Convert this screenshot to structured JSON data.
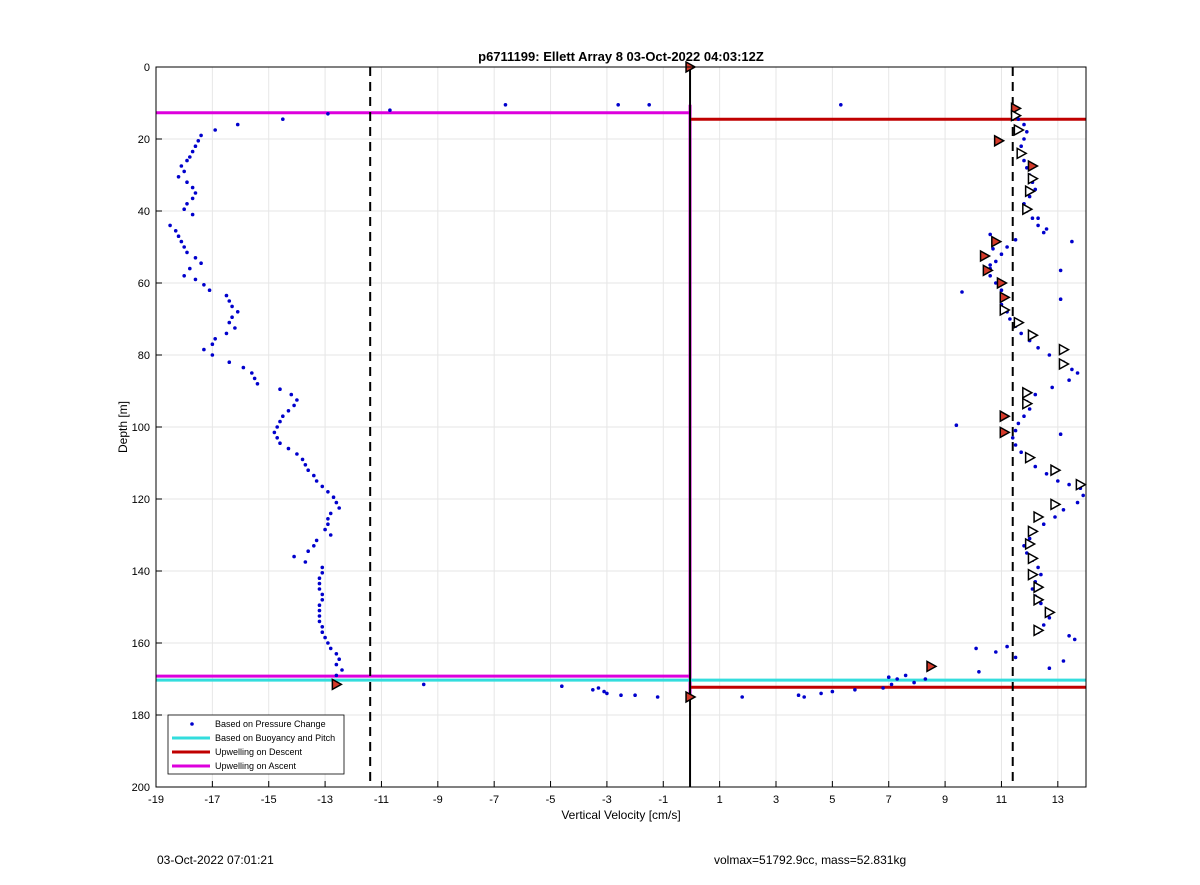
{
  "chart_data": {
    "type": "scatter",
    "title": "p6711199: Ellett Array 8 03-Oct-2022 04:03:12Z",
    "xlabel": "Vertical Velocity [cm/s]",
    "ylabel": "Depth [m]",
    "xlim": [
      -19,
      14
    ],
    "ylim": [
      0,
      200
    ],
    "y_reversed": true,
    "grid": true,
    "x_ticks": [
      "-19",
      "-17",
      "-15",
      "-13",
      "-11",
      "-9",
      "-7",
      "-5",
      "-3",
      "-1",
      "1",
      "3",
      "5",
      "7",
      "9",
      "11",
      "13"
    ],
    "y_ticks": [
      "0",
      "20",
      "40",
      "60",
      "80",
      "100",
      "120",
      "140",
      "160",
      "180",
      "200"
    ],
    "legend_position": "bottom-left",
    "legend": [
      {
        "label": "Based on Pressure Change",
        "color": "#0000cc",
        "style": "dot"
      },
      {
        "label": "Based on Buoyancy and Pitch",
        "color": "#33dddd",
        "style": "line"
      },
      {
        "label": "Upwelling on Descent",
        "color": "#c00000",
        "style": "line"
      },
      {
        "label": "Upwelling on Ascent",
        "color": "#dd00dd",
        "style": "line"
      }
    ],
    "series": [
      {
        "name": "Based on Pressure Change",
        "color": "#0000cc",
        "points": [
          [
            -12.9,
            13
          ],
          [
            -14.5,
            14.5
          ],
          [
            -16.1,
            16
          ],
          [
            -16.9,
            17.5
          ],
          [
            -17.4,
            19
          ],
          [
            -17.5,
            20.5
          ],
          [
            -17.6,
            22
          ],
          [
            -17.7,
            23.5
          ],
          [
            -17.8,
            25
          ],
          [
            -17.9,
            26
          ],
          [
            -18.1,
            27.5
          ],
          [
            -18.0,
            29
          ],
          [
            -18.2,
            30.5
          ],
          [
            -17.9,
            32
          ],
          [
            -17.7,
            33.5
          ],
          [
            -17.6,
            35
          ],
          [
            -17.7,
            36.5
          ],
          [
            -17.9,
            38
          ],
          [
            -18.0,
            39.5
          ],
          [
            -17.7,
            41
          ],
          [
            -18.5,
            44
          ],
          [
            -18.3,
            45.5
          ],
          [
            -18.2,
            47
          ],
          [
            -18.1,
            48.5
          ],
          [
            -18.0,
            50
          ],
          [
            -17.9,
            51.5
          ],
          [
            -17.6,
            53
          ],
          [
            -17.4,
            54.5
          ],
          [
            -17.8,
            56
          ],
          [
            -18.0,
            58
          ],
          [
            -17.6,
            59
          ],
          [
            -17.3,
            60.5
          ],
          [
            -17.1,
            62
          ],
          [
            -16.5,
            63.5
          ],
          [
            -16.4,
            65
          ],
          [
            -16.3,
            66.5
          ],
          [
            -16.1,
            68
          ],
          [
            -16.3,
            69.5
          ],
          [
            -16.4,
            71
          ],
          [
            -16.2,
            72.5
          ],
          [
            -16.5,
            74
          ],
          [
            -16.9,
            75.5
          ],
          [
            -17.0,
            77
          ],
          [
            -17.3,
            78.5
          ],
          [
            -17.0,
            80
          ],
          [
            -16.4,
            82
          ],
          [
            -15.9,
            83.5
          ],
          [
            -15.6,
            85
          ],
          [
            -15.5,
            86.5
          ],
          [
            -15.4,
            88
          ],
          [
            -14.6,
            89.5
          ],
          [
            -14.2,
            91
          ],
          [
            -14.0,
            92.5
          ],
          [
            -14.1,
            94
          ],
          [
            -14.3,
            95.5
          ],
          [
            -14.5,
            97
          ],
          [
            -14.6,
            98.5
          ],
          [
            -14.7,
            100
          ],
          [
            -14.8,
            101.5
          ],
          [
            -14.7,
            103
          ],
          [
            -14.6,
            104.5
          ],
          [
            -14.3,
            106
          ],
          [
            -14.0,
            107.5
          ],
          [
            -13.8,
            109
          ],
          [
            -13.7,
            110.5
          ],
          [
            -13.6,
            112
          ],
          [
            -13.4,
            113.5
          ],
          [
            -13.3,
            115
          ],
          [
            -13.1,
            116.5
          ],
          [
            -12.9,
            118
          ],
          [
            -12.7,
            119.5
          ],
          [
            -12.6,
            121
          ],
          [
            -12.5,
            122.5
          ],
          [
            -12.8,
            124
          ],
          [
            -12.9,
            125.5
          ],
          [
            -12.9,
            127
          ],
          [
            -13.0,
            128.5
          ],
          [
            -12.8,
            130
          ],
          [
            -13.3,
            131.5
          ],
          [
            -13.4,
            133
          ],
          [
            -13.6,
            134.5
          ],
          [
            -14.1,
            136
          ],
          [
            -13.7,
            137.5
          ],
          [
            -13.1,
            139
          ],
          [
            -13.1,
            140.5
          ],
          [
            -13.2,
            142
          ],
          [
            -13.2,
            143.5
          ],
          [
            -13.2,
            145
          ],
          [
            -13.1,
            146.5
          ],
          [
            -13.1,
            148
          ],
          [
            -13.2,
            149.5
          ],
          [
            -13.2,
            151
          ],
          [
            -13.2,
            152.5
          ],
          [
            -13.2,
            154
          ],
          [
            -13.1,
            155.5
          ],
          [
            -13.1,
            157
          ],
          [
            -13.0,
            158.5
          ],
          [
            -12.9,
            160
          ],
          [
            -12.8,
            161.5
          ],
          [
            -12.6,
            163
          ],
          [
            -12.5,
            164.5
          ],
          [
            -12.6,
            166
          ],
          [
            -12.4,
            167.5
          ],
          [
            -12.6,
            169
          ],
          [
            -10.7,
            12
          ],
          [
            -9.5,
            171.5
          ],
          [
            -6.6,
            10.5
          ],
          [
            -2.6,
            10.5
          ],
          [
            -1.5,
            10.5
          ],
          [
            5.3,
            10.5
          ],
          [
            -4.6,
            172
          ],
          [
            -3.5,
            173
          ],
          [
            -3.3,
            172.5
          ],
          [
            -3.1,
            173.5
          ],
          [
            -3.0,
            174
          ],
          [
            -2.5,
            174.5
          ],
          [
            -2.0,
            174.5
          ],
          [
            -1.2,
            175
          ],
          [
            1.8,
            175
          ],
          [
            3.8,
            174.5
          ],
          [
            4.0,
            175
          ],
          [
            4.6,
            174
          ],
          [
            5.0,
            173.5
          ],
          [
            5.8,
            173
          ],
          [
            6.8,
            172.5
          ],
          [
            7.0,
            169.5
          ],
          [
            7.1,
            171.5
          ],
          [
            7.3,
            170
          ],
          [
            7.6,
            169
          ],
          [
            7.9,
            171
          ],
          [
            8.3,
            170
          ],
          [
            10.1,
            161.5
          ],
          [
            10.2,
            168
          ],
          [
            10.8,
            162.5
          ],
          [
            11.2,
            161
          ],
          [
            11.5,
            164
          ],
          [
            12.7,
            167
          ],
          [
            13.2,
            165
          ],
          [
            11.4,
            12
          ],
          [
            11.6,
            14.5
          ],
          [
            11.8,
            16
          ],
          [
            11.9,
            18
          ],
          [
            11.8,
            20
          ],
          [
            11.7,
            22
          ],
          [
            11.6,
            24
          ],
          [
            11.8,
            26
          ],
          [
            11.9,
            28
          ],
          [
            12.0,
            30
          ],
          [
            12.1,
            32
          ],
          [
            12.2,
            34
          ],
          [
            12.0,
            36
          ],
          [
            11.8,
            38
          ],
          [
            11.9,
            40
          ],
          [
            12.1,
            42
          ],
          [
            12.3,
            44
          ],
          [
            12.5,
            46
          ],
          [
            11.5,
            48
          ],
          [
            11.2,
            50
          ],
          [
            11.0,
            52
          ],
          [
            10.8,
            54
          ],
          [
            10.6,
            56
          ],
          [
            10.6,
            58
          ],
          [
            10.8,
            60
          ],
          [
            11.0,
            62
          ],
          [
            11.1,
            64
          ],
          [
            11.0,
            66
          ],
          [
            11.2,
            68
          ],
          [
            11.3,
            70
          ],
          [
            11.5,
            72
          ],
          [
            11.7,
            74
          ],
          [
            12.0,
            76
          ],
          [
            12.3,
            78
          ],
          [
            12.7,
            80
          ],
          [
            13.2,
            82
          ],
          [
            13.5,
            84
          ],
          [
            13.7,
            85
          ],
          [
            13.4,
            87
          ],
          [
            12.8,
            89
          ],
          [
            12.2,
            91
          ],
          [
            11.9,
            93
          ],
          [
            12.0,
            95
          ],
          [
            11.8,
            97
          ],
          [
            11.6,
            99
          ],
          [
            11.5,
            101
          ],
          [
            11.4,
            103
          ],
          [
            11.5,
            105
          ],
          [
            11.7,
            107
          ],
          [
            11.9,
            109
          ],
          [
            12.2,
            111
          ],
          [
            12.6,
            113
          ],
          [
            13.0,
            115
          ],
          [
            13.4,
            116
          ],
          [
            13.8,
            117
          ],
          [
            13.9,
            119
          ],
          [
            13.7,
            121
          ],
          [
            13.2,
            123
          ],
          [
            12.9,
            125
          ],
          [
            12.5,
            127
          ],
          [
            12.2,
            129
          ],
          [
            12.0,
            131
          ],
          [
            11.8,
            133
          ],
          [
            11.9,
            135
          ],
          [
            12.1,
            137
          ],
          [
            12.3,
            139
          ],
          [
            12.4,
            141
          ],
          [
            12.2,
            143
          ],
          [
            12.1,
            145
          ],
          [
            12.2,
            147
          ],
          [
            12.4,
            149
          ],
          [
            12.6,
            151
          ],
          [
            12.7,
            153
          ],
          [
            12.5,
            155
          ],
          [
            12.3,
            157
          ],
          [
            13.4,
            158
          ],
          [
            13.6,
            159
          ],
          [
            10.6,
            46.5
          ],
          [
            10.7,
            50.5
          ],
          [
            10.6,
            55
          ],
          [
            9.6,
            62.5
          ],
          [
            9.4,
            99.5
          ],
          [
            13.5,
            48.5
          ],
          [
            13.1,
            56.5
          ],
          [
            13.1,
            64.5
          ],
          [
            13.1,
            102
          ],
          [
            12.6,
            45
          ],
          [
            12.3,
            42
          ]
        ]
      },
      {
        "name": "Buoyancy markers",
        "color": "#000000",
        "points": [
          [
            -0.05,
            0
          ],
          [
            11.5,
            11.5
          ],
          [
            11.5,
            13.5
          ],
          [
            11.6,
            17.5
          ],
          [
            10.9,
            20.5
          ],
          [
            11.7,
            24
          ],
          [
            12.1,
            27.5
          ],
          [
            12.1,
            31
          ],
          [
            12.0,
            34.5
          ],
          [
            11.9,
            39.5
          ],
          [
            10.8,
            48.5
          ],
          [
            10.4,
            52.5
          ],
          [
            10.5,
            56.5
          ],
          [
            11.0,
            60
          ],
          [
            11.1,
            64
          ],
          [
            11.1,
            67.5
          ],
          [
            11.6,
            71
          ],
          [
            12.1,
            74.5
          ],
          [
            13.2,
            78.5
          ],
          [
            13.2,
            82.5
          ],
          [
            11.9,
            90.5
          ],
          [
            11.9,
            93.5
          ],
          [
            11.1,
            97
          ],
          [
            11.1,
            101.5
          ],
          [
            12.0,
            108.5
          ],
          [
            12.9,
            112
          ],
          [
            13.8,
            116
          ],
          [
            12.9,
            121.5
          ],
          [
            12.3,
            125
          ],
          [
            12.1,
            129
          ],
          [
            12.0,
            132.5
          ],
          [
            12.1,
            136.5
          ],
          [
            12.1,
            141
          ],
          [
            12.3,
            144.5
          ],
          [
            12.3,
            148
          ],
          [
            12.7,
            151.5
          ],
          [
            12.3,
            156.5
          ],
          [
            8.5,
            166.5
          ],
          [
            -12.6,
            171.5
          ],
          [
            -0.05,
            175
          ]
        ],
        "red_fill_depths": [
          0,
          11.5,
          20.5,
          27.5,
          48.5,
          52.5,
          56.5,
          60,
          64,
          97,
          101.5,
          166.5,
          171.5,
          175
        ]
      }
    ],
    "lines": [
      {
        "name": "Upwelling on Ascent",
        "color": "#dd00dd",
        "segments": [
          [
            [
              -19,
              12.7
            ],
            [
              -0.05,
              12.7
            ]
          ],
          [
            [
              -19,
              169.2
            ],
            [
              -0.05,
              169.2
            ]
          ],
          [
            [
              -0.05,
              10.5
            ],
            [
              -0.05,
              175
            ]
          ]
        ]
      },
      {
        "name": "Upwelling on Descent",
        "color": "#c00000",
        "segments": [
          [
            [
              -0.05,
              14.5
            ],
            [
              14,
              14.5
            ]
          ],
          [
            [
              -0.05,
              172.3
            ],
            [
              14,
              172.3
            ]
          ]
        ]
      },
      {
        "name": "Based on Buoyancy and Pitch",
        "color": "#33dddd",
        "segments": [
          [
            [
              -19,
              170.3
            ],
            [
              14,
              170.3
            ]
          ]
        ]
      },
      {
        "name": "Zero line",
        "color": "#000000",
        "segments": [
          [
            [
              -0.05,
              0
            ],
            [
              -0.05,
              200
            ]
          ]
        ]
      },
      {
        "name": "Threshold -",
        "color": "#000000",
        "dashed": true,
        "segments": [
          [
            [
              -11.4,
              0
            ],
            [
              -11.4,
              200
            ]
          ]
        ]
      },
      {
        "name": "Threshold +",
        "color": "#000000",
        "dashed": true,
        "segments": [
          [
            [
              11.4,
              0
            ],
            [
              11.4,
              200
            ]
          ]
        ]
      }
    ]
  },
  "footer": {
    "date_label": "03-Oct-2022 07:01:21",
    "volmax_label": "volmax=51792.9cc, mass=52.831kg"
  }
}
